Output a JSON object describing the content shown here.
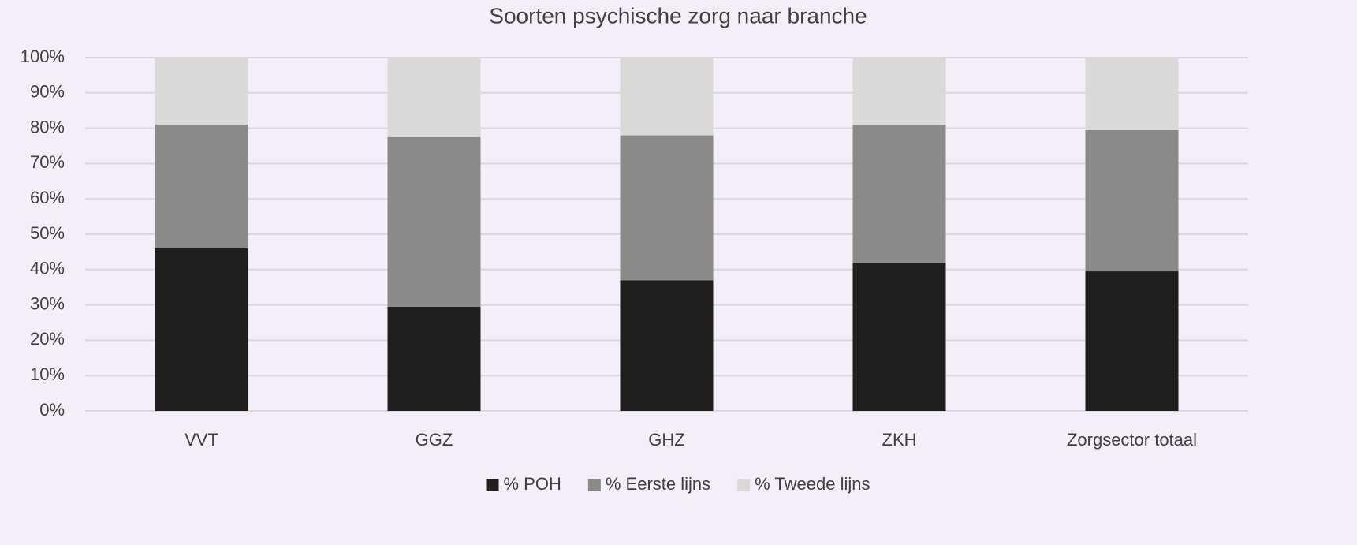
{
  "chart_data": {
    "type": "stacked_bar",
    "title": "Soorten psychische zorg naar branche",
    "categories": [
      "VVT",
      "GGZ",
      "GHZ",
      "ZKH",
      "Zorgsector totaal"
    ],
    "series": [
      {
        "name": "% POH",
        "color": "#1f1f1f",
        "values": [
          46,
          29.5,
          37,
          42,
          39.5
        ]
      },
      {
        "name": "% Eerste lijns",
        "color": "#8a8a8a",
        "values": [
          35,
          48,
          41,
          39,
          40
        ]
      },
      {
        "name": "% Tweede lijns",
        "color": "#d9d9d9",
        "values": [
          19,
          22.5,
          22,
          19,
          20.5
        ]
      }
    ],
    "ylim": [
      0,
      100
    ],
    "yticks": [
      {
        "value": 0,
        "label": "0%"
      },
      {
        "value": 10,
        "label": "10%"
      },
      {
        "value": 20,
        "label": "20%"
      },
      {
        "value": 30,
        "label": "30%"
      },
      {
        "value": 40,
        "label": "40%"
      },
      {
        "value": 50,
        "label": "50%"
      },
      {
        "value": 60,
        "label": "60%"
      },
      {
        "value": 70,
        "label": "70%"
      },
      {
        "value": 80,
        "label": "80%"
      },
      {
        "value": 90,
        "label": "90%"
      },
      {
        "value": 100,
        "label": "100%"
      }
    ],
    "grid": true,
    "legend": "bottom"
  }
}
